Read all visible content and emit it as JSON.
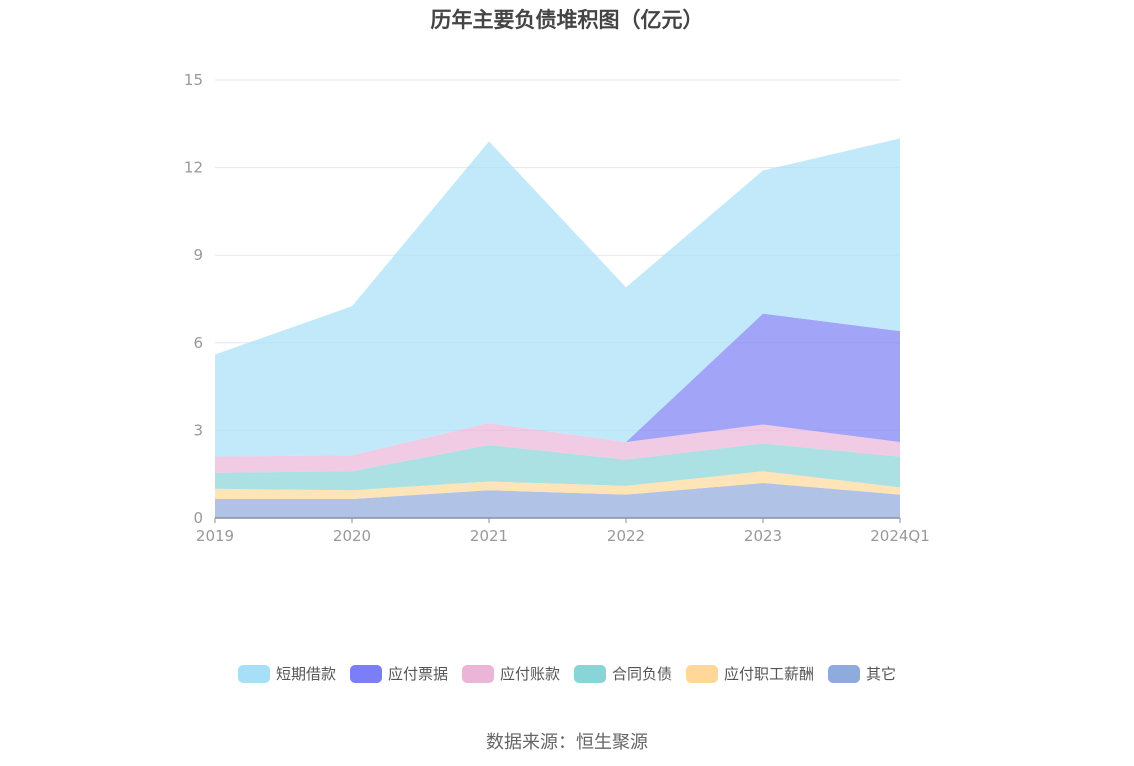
{
  "chart_data": {
    "type": "area",
    "stacked": true,
    "title": "历年主要负债堆积图（亿元）",
    "source": "数据来源：恒生聚源",
    "categories": [
      "2019",
      "2020",
      "2021",
      "2022",
      "2023",
      "2024Q1"
    ],
    "ylim": [
      0,
      15
    ],
    "yticks": [
      0,
      3,
      6,
      9,
      12,
      15
    ],
    "grid": true,
    "legend_position": "bottom",
    "series": [
      {
        "name": "其它",
        "color": "#8faadc",
        "values": [
          0.65,
          0.65,
          0.95,
          0.8,
          1.2,
          0.8
        ]
      },
      {
        "name": "应付职工薪酬",
        "color": "#ffd899",
        "values": [
          0.35,
          0.3,
          0.3,
          0.3,
          0.4,
          0.25
        ]
      },
      {
        "name": "合同负债",
        "color": "#88d4d6",
        "values": [
          0.55,
          0.65,
          1.25,
          0.9,
          0.95,
          1.05
        ]
      },
      {
        "name": "应付账款",
        "color": "#ebb5d8",
        "values": [
          0.55,
          0.55,
          0.75,
          0.6,
          0.65,
          0.5
        ]
      },
      {
        "name": "应付票据",
        "color": "#7b7ef5",
        "values": [
          0,
          0,
          0,
          0,
          3.8,
          3.8
        ]
      },
      {
        "name": "短期借款",
        "color": "#a8dff8",
        "values": [
          3.5,
          5.1,
          9.65,
          5.3,
          4.9,
          6.6
        ]
      }
    ],
    "legend_order": [
      "短期借款",
      "应付票据",
      "应付账款",
      "合同负债",
      "应付职工薪酬",
      "其它"
    ]
  }
}
